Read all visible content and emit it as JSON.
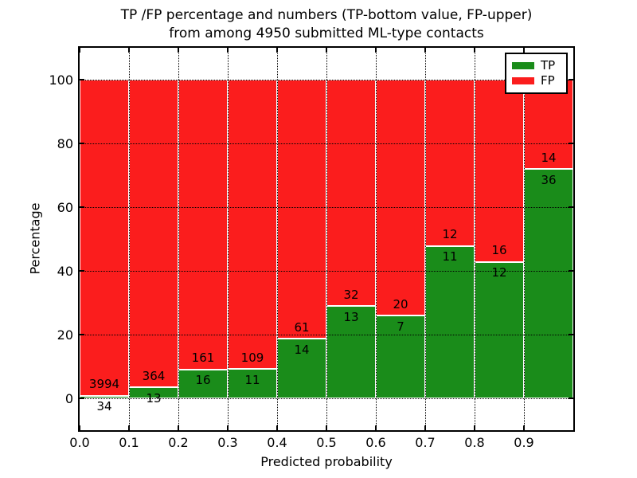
{
  "figure": {
    "title_line1": "TP /FP percentage and numbers (TP-bottom value, FP-upper)",
    "title_line2": "from among 4950 submitted ML-type contacts"
  },
  "chart_data": {
    "type": "bar",
    "subtype": "stacked-percentage",
    "title": "TP /FP percentage and numbers (TP-bottom value, FP-upper)\nfrom among 4950 submitted ML-type contacts",
    "xlabel": "Predicted probability",
    "ylabel": "Percentage",
    "xlim": [
      0.0,
      1.0
    ],
    "ylim": [
      -10,
      110
    ],
    "x_ticks": [
      "0.0",
      "0.1",
      "0.2",
      "0.3",
      "0.4",
      "0.5",
      "0.6",
      "0.7",
      "0.8",
      "0.9"
    ],
    "y_ticks": [
      0,
      20,
      40,
      60,
      80,
      100
    ],
    "grid": "dotted-both-axes",
    "total_contacts": 4950,
    "legend": {
      "position": "upper-right",
      "entries": [
        {
          "label": "TP",
          "color": "#1a8c1a"
        },
        {
          "label": "FP",
          "color": "#fb1d1d"
        }
      ]
    },
    "bins": [
      {
        "range": [
          0.0,
          0.1
        ],
        "tp": 34,
        "fp": 3994
      },
      {
        "range": [
          0.1,
          0.2
        ],
        "tp": 13,
        "fp": 364
      },
      {
        "range": [
          0.2,
          0.3
        ],
        "tp": 16,
        "fp": 161
      },
      {
        "range": [
          0.3,
          0.4
        ],
        "tp": 11,
        "fp": 109
      },
      {
        "range": [
          0.4,
          0.5
        ],
        "tp": 14,
        "fp": 61
      },
      {
        "range": [
          0.5,
          0.6
        ],
        "tp": 13,
        "fp": 32
      },
      {
        "range": [
          0.6,
          0.7
        ],
        "tp": 7,
        "fp": 20
      },
      {
        "range": [
          0.7,
          0.8
        ],
        "tp": 11,
        "fp": 12
      },
      {
        "range": [
          0.8,
          0.9
        ],
        "tp": 12,
        "fp": 16
      },
      {
        "range": [
          0.9,
          1.0
        ],
        "tp": 36,
        "fp": 14
      }
    ]
  },
  "colors": {
    "tp": "#1a8c1a",
    "fp": "#fb1d1d",
    "grid": "#000000",
    "background": "#ffffff"
  }
}
